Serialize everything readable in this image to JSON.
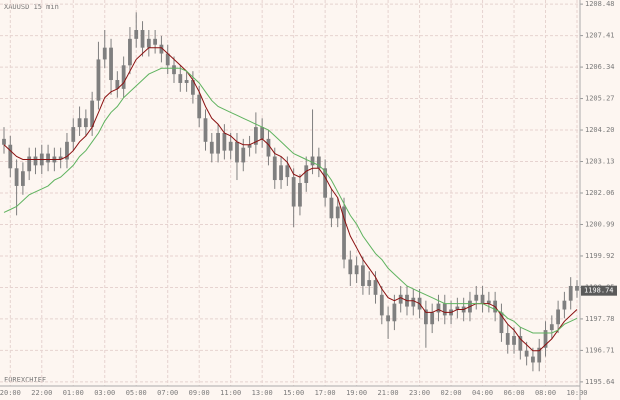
{
  "chart_data": {
    "type": "candlestick",
    "title": "XAUUSD 15 min",
    "watermark": "FOREXCHIEF",
    "x": [
      null,
      "20:00",
      null,
      null,
      null,
      null,
      "22:00",
      null,
      null,
      null,
      null,
      "01:00",
      null,
      null,
      null,
      null,
      "03:00",
      null,
      null,
      null,
      null,
      "05:00",
      null,
      null,
      null,
      null,
      "07:00",
      null,
      null,
      null,
      null,
      "09:00",
      null,
      null,
      null,
      null,
      "11:00",
      null,
      null,
      null,
      null,
      "13:00",
      null,
      null,
      null,
      null,
      "15:00",
      null,
      null,
      null,
      null,
      "17:00",
      null,
      null,
      null,
      null,
      "19:00",
      null,
      null,
      null,
      null,
      "21:00",
      null,
      null,
      null,
      null,
      "23:00",
      null,
      null,
      null,
      null,
      "02:00",
      null,
      null,
      null,
      null,
      "04:00",
      null,
      null,
      null,
      null,
      "06:00",
      null,
      null,
      null,
      null,
      "08:00",
      null,
      null,
      null,
      null,
      "10:00"
    ],
    "open": [
      1203.9,
      1203.7,
      1202.9,
      1202.3,
      1202.8,
      1203.3,
      1203.0,
      1203.4,
      1203.1,
      1203.3,
      1203.2,
      1203.8,
      1204.3,
      1204.6,
      1204.3,
      1205.2,
      1206.6,
      1207.0,
      1205.9,
      1205.6,
      1206.4,
      1207.3,
      1207.6,
      1207.0,
      1207.3,
      1207.1,
      1206.8,
      1206.4,
      1206.1,
      1205.8,
      1205.9,
      1205.4,
      1204.6,
      1203.8,
      1203.4,
      1204.1,
      1203.5,
      1203.8,
      1203.1,
      1203.6,
      1203.7,
      1204.3,
      1203.9,
      1203.3,
      1202.5,
      1203.0,
      1202.6,
      1201.6,
      1202.4,
      1203.0,
      1203.3,
      1202.9,
      1201.9,
      1201.2,
      1201.6,
      1199.8,
      1199.3,
      1199.6,
      1198.9,
      1199.1,
      1198.6,
      1197.9,
      1197.7,
      1198.3,
      1198.6,
      1198.2,
      1198.5,
      1198.1,
      1197.6,
      1198.0,
      1198.3,
      1197.9,
      1198.1,
      1198.2,
      1198.0,
      1198.4,
      1198.6,
      1198.3,
      1198.4,
      1198.0,
      1197.3,
      1196.9,
      1197.2,
      1196.7,
      1196.5,
      1196.3,
      1196.8,
      1197.4,
      1197.6,
      1198.1,
      1198.4,
      1198.9
    ],
    "high": [
      1204.3,
      1204.0,
      1203.2,
      1203.1,
      1203.6,
      1203.6,
      1203.7,
      1203.7,
      1203.6,
      1203.6,
      1204.1,
      1204.6,
      1205.0,
      1204.9,
      1205.5,
      1207.2,
      1207.6,
      1207.3,
      1206.2,
      1206.7,
      1207.7,
      1208.2,
      1207.9,
      1207.6,
      1207.6,
      1207.4,
      1207.1,
      1206.7,
      1206.4,
      1206.2,
      1206.2,
      1205.7,
      1204.9,
      1204.1,
      1204.4,
      1204.4,
      1204.1,
      1204.1,
      1203.9,
      1204.0,
      1204.8,
      1204.6,
      1204.2,
      1203.6,
      1203.3,
      1203.3,
      1202.9,
      1202.7,
      1203.3,
      1204.9,
      1203.6,
      1203.2,
      1202.2,
      1201.9,
      1201.9,
      1200.1,
      1199.9,
      1199.9,
      1199.4,
      1199.4,
      1198.9,
      1198.2,
      1198.6,
      1198.9,
      1198.9,
      1198.8,
      1198.8,
      1198.4,
      1198.3,
      1198.6,
      1198.6,
      1198.4,
      1198.5,
      1198.5,
      1198.7,
      1198.9,
      1198.9,
      1198.7,
      1198.7,
      1198.3,
      1197.6,
      1197.5,
      1197.5,
      1197.0,
      1196.8,
      1197.1,
      1197.7,
      1197.9,
      1198.4,
      1198.7,
      1199.2,
      1199.1
    ],
    "low": [
      1203.4,
      1202.6,
      1201.3,
      1202.0,
      1202.5,
      1202.7,
      1202.7,
      1202.8,
      1202.8,
      1202.9,
      1202.9,
      1203.5,
      1204.0,
      1204.0,
      1204.0,
      1204.9,
      1206.3,
      1205.4,
      1205.3,
      1205.3,
      1206.1,
      1207.0,
      1206.7,
      1206.7,
      1206.8,
      1206.5,
      1206.1,
      1205.8,
      1205.5,
      1205.5,
      1205.1,
      1204.3,
      1203.5,
      1203.1,
      1203.1,
      1203.2,
      1203.2,
      1202.5,
      1202.8,
      1203.3,
      1203.4,
      1203.6,
      1203.0,
      1202.2,
      1202.2,
      1202.3,
      1200.9,
      1201.3,
      1202.1,
      1202.7,
      1202.6,
      1201.6,
      1200.9,
      1200.9,
      1199.5,
      1198.9,
      1199.0,
      1198.6,
      1198.6,
      1198.3,
      1197.6,
      1197.1,
      1197.4,
      1198.0,
      1197.9,
      1197.9,
      1197.8,
      1196.8,
      1197.3,
      1197.7,
      1197.6,
      1197.6,
      1197.8,
      1197.7,
      1197.7,
      1198.1,
      1198.0,
      1198.0,
      1197.7,
      1197.0,
      1196.6,
      1196.6,
      1196.4,
      1196.2,
      1196.0,
      1196.0,
      1196.5,
      1197.1,
      1197.3,
      1197.8,
      1198.1,
      1198.5
    ],
    "close": [
      1203.7,
      1202.9,
      1202.3,
      1202.8,
      1203.3,
      1203.0,
      1203.4,
      1203.1,
      1203.3,
      1203.2,
      1203.8,
      1204.3,
      1204.6,
      1204.3,
      1205.2,
      1206.6,
      1207.0,
      1205.9,
      1205.6,
      1206.4,
      1207.3,
      1207.6,
      1207.0,
      1207.3,
      1207.1,
      1206.8,
      1206.4,
      1206.1,
      1205.8,
      1205.9,
      1205.4,
      1204.6,
      1203.8,
      1203.4,
      1204.1,
      1203.5,
      1203.8,
      1203.1,
      1203.6,
      1203.7,
      1204.3,
      1203.9,
      1203.3,
      1202.5,
      1203.0,
      1202.6,
      1201.6,
      1202.4,
      1203.0,
      1203.3,
      1202.9,
      1201.9,
      1201.2,
      1201.6,
      1199.8,
      1199.3,
      1199.6,
      1198.9,
      1199.1,
      1198.6,
      1197.9,
      1197.7,
      1198.3,
      1198.6,
      1198.2,
      1198.5,
      1198.1,
      1197.6,
      1198.0,
      1198.3,
      1197.9,
      1198.1,
      1198.2,
      1198.0,
      1198.4,
      1198.6,
      1198.3,
      1198.4,
      1198.0,
      1197.3,
      1196.9,
      1197.2,
      1196.7,
      1196.5,
      1196.3,
      1196.8,
      1197.4,
      1197.6,
      1198.1,
      1198.4,
      1198.9,
      1198.74
    ],
    "candle_color": "#7f7f7f",
    "series": [
      {
        "color": "#8b1010",
        "values": [
          1203.7,
          1203.5,
          1203.3,
          1203.2,
          1203.2,
          1203.2,
          1203.2,
          1203.2,
          1203.2,
          1203.2,
          1203.3,
          1203.5,
          1203.8,
          1204.0,
          1204.3,
          1204.8,
          1205.3,
          1205.5,
          1205.6,
          1205.8,
          1206.2,
          1206.6,
          1206.8,
          1207.0,
          1207.0,
          1207.0,
          1206.8,
          1206.6,
          1206.4,
          1206.2,
          1205.9,
          1205.5,
          1205.0,
          1204.6,
          1204.4,
          1204.1,
          1204.0,
          1203.8,
          1203.7,
          1203.7,
          1203.8,
          1203.9,
          1203.7,
          1203.4,
          1203.3,
          1203.1,
          1202.7,
          1202.6,
          1202.8,
          1202.9,
          1202.9,
          1202.6,
          1202.2,
          1201.9,
          1201.2,
          1200.6,
          1200.2,
          1199.8,
          1199.5,
          1199.2,
          1198.8,
          1198.5,
          1198.4,
          1198.5,
          1198.4,
          1198.4,
          1198.3,
          1198.0,
          1198.0,
          1198.1,
          1198.0,
          1198.0,
          1198.1,
          1198.1,
          1198.2,
          1198.3,
          1198.3,
          1198.3,
          1198.2,
          1197.9,
          1197.6,
          1197.4,
          1197.1,
          1196.9,
          1196.7,
          1196.7,
          1196.9,
          1197.1,
          1197.4,
          1197.7,
          1197.9,
          1198.1
        ]
      },
      {
        "color": "#5fb35f",
        "values": [
          1201.4,
          1201.5,
          1201.6,
          1201.8,
          1202.0,
          1202.1,
          1202.2,
          1202.3,
          1202.5,
          1202.6,
          1202.8,
          1203.0,
          1203.3,
          1203.5,
          1203.8,
          1204.1,
          1204.5,
          1204.8,
          1205.0,
          1205.3,
          1205.5,
          1205.7,
          1205.9,
          1206.1,
          1206.2,
          1206.3,
          1206.3,
          1206.3,
          1206.3,
          1206.2,
          1206.0,
          1205.8,
          1205.5,
          1205.2,
          1205.0,
          1204.9,
          1204.8,
          1204.7,
          1204.6,
          1204.5,
          1204.4,
          1204.3,
          1204.2,
          1204.0,
          1203.8,
          1203.6,
          1203.4,
          1203.3,
          1203.2,
          1203.1,
          1203.0,
          1202.8,
          1202.5,
          1202.1,
          1201.7,
          1201.3,
          1201.0,
          1200.6,
          1200.3,
          1200.0,
          1199.8,
          1199.5,
          1199.3,
          1199.1,
          1198.9,
          1198.8,
          1198.7,
          1198.6,
          1198.5,
          1198.4,
          1198.3,
          1198.3,
          1198.3,
          1198.3,
          1198.3,
          1198.3,
          1198.3,
          1198.2,
          1198.1,
          1198.0,
          1197.8,
          1197.7,
          1197.5,
          1197.4,
          1197.3,
          1197.3,
          1197.3,
          1197.3,
          1197.4,
          1197.6,
          1197.7,
          1197.8
        ]
      }
    ],
    "ylim": [
      1195.5,
      1208.62
    ],
    "yticks": [
      1195.64,
      1196.71,
      1197.78,
      1198.85,
      1199.92,
      1200.99,
      1202.06,
      1203.13,
      {
        "value": 1204.2,
        "label": "1204.20"
      },
      1205.27,
      1206.34,
      1207.41,
      1208.48
    ],
    "grid": true
  }
}
